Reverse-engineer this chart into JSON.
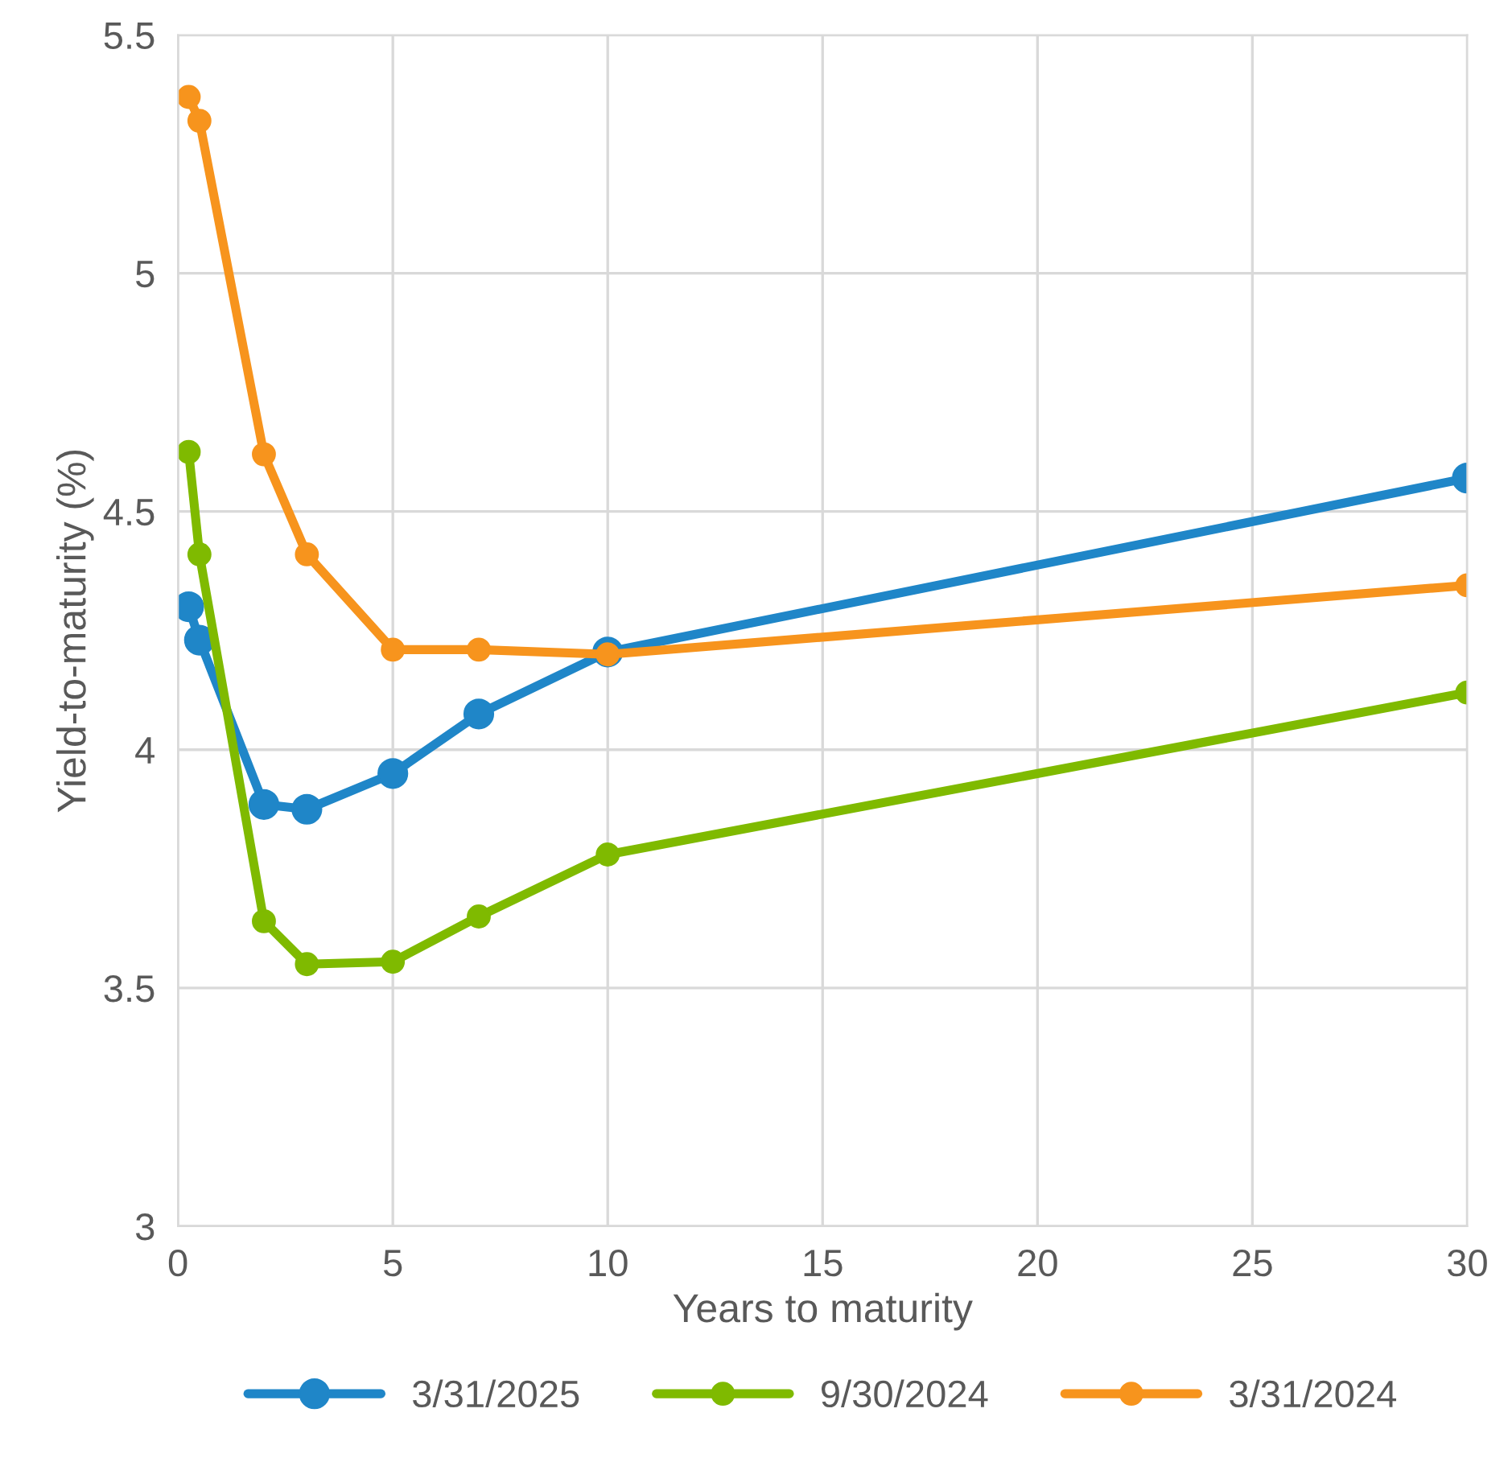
{
  "chart_data": {
    "type": "line",
    "xlabel": "Years to maturity",
    "ylabel": "Yield-to-maturity (%)",
    "x": [
      0.25,
      0.5,
      2,
      3,
      5,
      7,
      10,
      30
    ],
    "series": [
      {
        "name": "3/31/2025",
        "color": "#1f86c8",
        "values": [
          4.3,
          4.23,
          3.885,
          3.875,
          3.95,
          4.075,
          4.205,
          4.57
        ]
      },
      {
        "name": "9/30/2024",
        "color": "#7fba00",
        "values": [
          4.625,
          4.41,
          3.64,
          3.55,
          3.555,
          3.65,
          3.78,
          4.12
        ]
      },
      {
        "name": "3/31/2024",
        "color": "#f7941d",
        "values": [
          5.37,
          5.32,
          4.62,
          4.41,
          4.21,
          4.21,
          4.2,
          4.345
        ]
      }
    ],
    "xlim": [
      0,
      30
    ],
    "xticks": [
      0,
      5,
      10,
      15,
      20,
      25,
      30
    ],
    "ylim": [
      3,
      5.5
    ],
    "yticks": [
      3,
      3.5,
      4,
      4.5,
      5,
      5.5
    ],
    "grid": true,
    "legend": "bottom",
    "marker": "circle",
    "line_style": "solid"
  }
}
